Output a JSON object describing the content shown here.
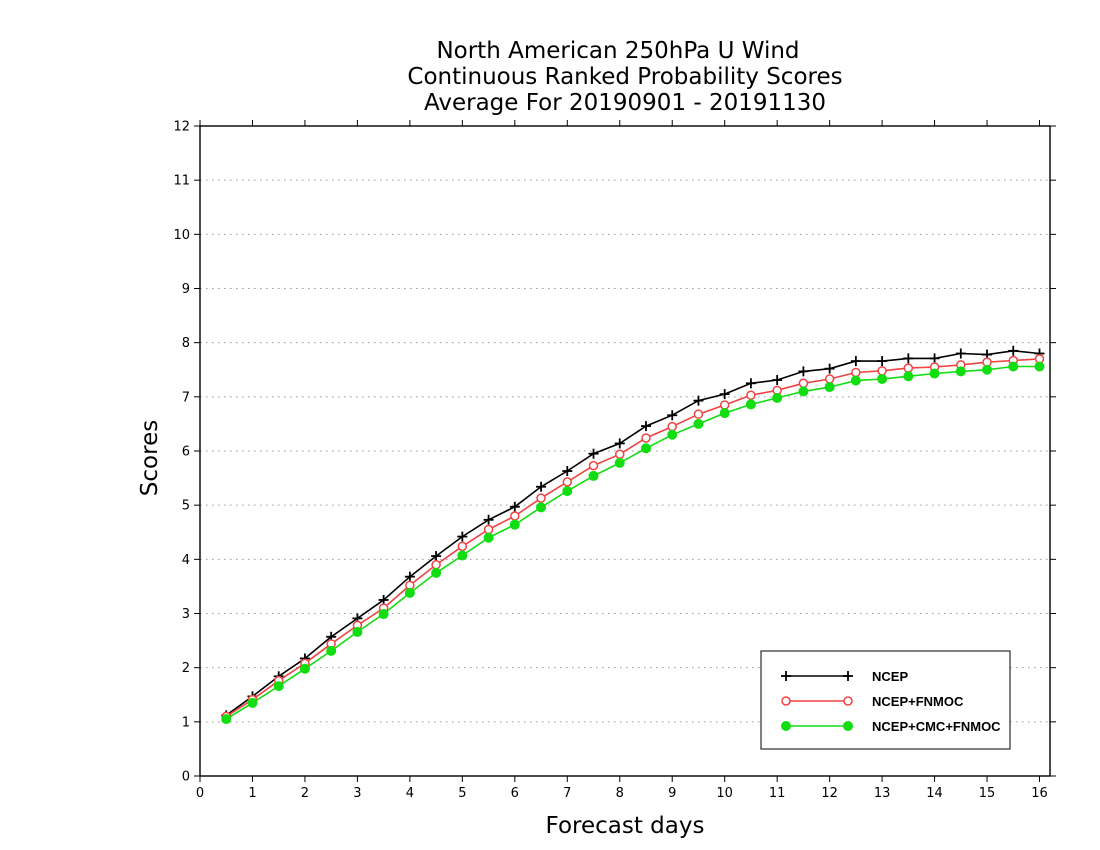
{
  "chart_data": {
    "type": "line",
    "title_lines": [
      "North American 250hPa U Wind",
      "Continuous Ranked Probability Scores",
      "Average For 20190901 - 20191130"
    ],
    "xlabel": "Forecast days",
    "ylabel": "Scores",
    "xlim": [
      0,
      16.2
    ],
    "ylim": [
      0,
      12
    ],
    "xticks": [
      0,
      1,
      2,
      3,
      4,
      5,
      6,
      7,
      8,
      9,
      10,
      11,
      12,
      13,
      14,
      15,
      16
    ],
    "yticks": [
      0,
      1,
      2,
      3,
      4,
      5,
      6,
      7,
      8,
      9,
      10,
      11,
      12
    ],
    "grid": "horizontal dotted",
    "legend_position": "bottom-right",
    "x": [
      0.5,
      1,
      1.5,
      2,
      2.5,
      3,
      3.5,
      4,
      4.5,
      5,
      5.5,
      6,
      6.5,
      7,
      7.5,
      8,
      8.5,
      9,
      9.5,
      10,
      10.5,
      11,
      11.5,
      12,
      12.5,
      13,
      13.5,
      14,
      14.5,
      15,
      15.5,
      16
    ],
    "series": [
      {
        "name": "NCEP",
        "color": "#000000",
        "marker": "plus",
        "values": [
          1.12,
          1.47,
          1.84,
          2.17,
          2.57,
          2.91,
          3.25,
          3.68,
          4.06,
          4.42,
          4.73,
          4.97,
          5.34,
          5.63,
          5.95,
          6.14,
          6.46,
          6.66,
          6.93,
          7.05,
          7.25,
          7.31,
          7.47,
          7.52,
          7.66,
          7.66,
          7.71,
          7.71,
          7.8,
          7.78,
          7.85,
          7.8
        ]
      },
      {
        "name": "NCEP+FNMOC",
        "color": "#ee4444",
        "marker": "open-circle",
        "values": [
          1.1,
          1.41,
          1.76,
          2.08,
          2.44,
          2.78,
          3.1,
          3.52,
          3.9,
          4.24,
          4.55,
          4.8,
          5.13,
          5.43,
          5.73,
          5.94,
          6.24,
          6.45,
          6.68,
          6.85,
          7.03,
          7.12,
          7.25,
          7.33,
          7.45,
          7.48,
          7.53,
          7.55,
          7.59,
          7.64,
          7.67,
          7.7
        ]
      },
      {
        "name": "NCEP+CMC+FNMOC",
        "color": "#11dd11",
        "marker": "filled-circle",
        "values": [
          1.05,
          1.35,
          1.66,
          1.98,
          2.31,
          2.66,
          2.99,
          3.38,
          3.75,
          4.07,
          4.4,
          4.64,
          4.96,
          5.26,
          5.54,
          5.78,
          6.05,
          6.3,
          6.5,
          6.7,
          6.86,
          6.98,
          7.1,
          7.18,
          7.3,
          7.33,
          7.38,
          7.43,
          7.47,
          7.5,
          7.56,
          7.56
        ]
      }
    ]
  }
}
